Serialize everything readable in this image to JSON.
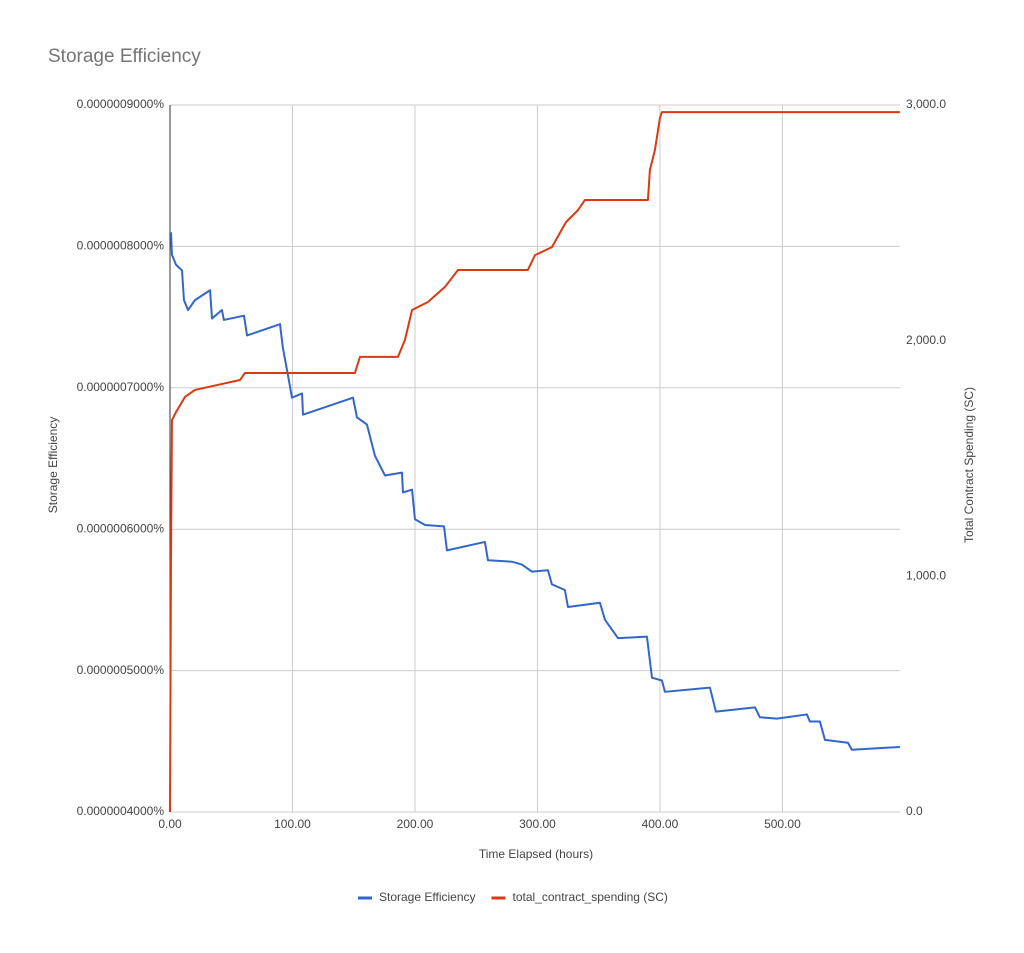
{
  "chart_data": {
    "type": "line",
    "title": "Storage Efficiency",
    "x_label": "Time Elapsed (hours)",
    "y_label": "Storage Efficiency",
    "y2_label": "Total Contract Spending (SC)",
    "xlim": [
      0,
      596
    ],
    "xticks": [
      {
        "value": 0,
        "label": "0.00"
      },
      {
        "value": 100,
        "label": "100.00"
      },
      {
        "value": 200,
        "label": "200.00"
      },
      {
        "value": 300,
        "label": "300.00"
      },
      {
        "value": 400,
        "label": "400.00"
      },
      {
        "value": 500,
        "label": "500.00"
      }
    ],
    "ylim": [
      4e-07,
      9e-07
    ],
    "yticks": [
      {
        "value": 4e-07,
        "label": "0.0000004000%"
      },
      {
        "value": 5e-07,
        "label": "0.0000005000%"
      },
      {
        "value": 6e-07,
        "label": "0.0000006000%"
      },
      {
        "value": 7e-07,
        "label": "0.0000007000%"
      },
      {
        "value": 8e-07,
        "label": "0.0000008000%"
      },
      {
        "value": 9e-07,
        "label": "0.0000009000%"
      }
    ],
    "y2lim": [
      0,
      3000
    ],
    "y2ticks": [
      {
        "value": 0,
        "label": "0.0"
      },
      {
        "value": 1000,
        "label": "1,000.0"
      },
      {
        "value": 2000,
        "label": "2,000.0"
      },
      {
        "value": 3000,
        "label": "3,000.0"
      }
    ],
    "grid": true,
    "legend": "bottom",
    "series": [
      {
        "name": "Storage Efficiency",
        "color": "#3366cc",
        "axis": "y",
        "x": [
          0.8,
          1.6,
          4.9,
          9.8,
          11.4,
          14.7,
          20.4,
          32.7,
          34.3,
          42.4,
          44,
          60.4,
          62.9,
          89.8,
          92.2,
          96.3,
          99.6,
          107.8,
          108.6,
          149.4,
          152.7,
          160.8,
          167.3,
          175.5,
          189.4,
          190.2,
          197.6,
          200,
          208.2,
          223.7,
          226.1,
          257.1,
          259.6,
          279.2,
          287.3,
          295.5,
          308.6,
          311.8,
          322.4,
          324.9,
          351,
          355.1,
          365.7,
          389.4,
          393.5,
          401.6,
          404.1,
          440.8,
          445.7,
          477.6,
          481.6,
          495.5,
          520,
          522.4,
          530.6,
          534.7,
          553.5,
          556.7,
          595.9
        ],
        "values": [
          8.1e-07,
          7.94e-07,
          7.87e-07,
          7.83e-07,
          7.62e-07,
          7.55e-07,
          7.62e-07,
          7.69e-07,
          7.49e-07,
          7.55e-07,
          7.48e-07,
          7.51e-07,
          7.37e-07,
          7.45e-07,
          7.28e-07,
          7.09e-07,
          6.93e-07,
          6.96e-07,
          6.81e-07,
          6.93e-07,
          6.79e-07,
          6.74e-07,
          6.52e-07,
          6.38e-07,
          6.4e-07,
          6.26e-07,
          6.28e-07,
          6.07e-07,
          6.03e-07,
          6.02e-07,
          5.85e-07,
          5.91e-07,
          5.78e-07,
          5.77e-07,
          5.75e-07,
          5.7e-07,
          5.71e-07,
          5.61e-07,
          5.57e-07,
          5.45e-07,
          5.48e-07,
          5.36e-07,
          5.23e-07,
          5.24e-07,
          4.95e-07,
          4.93e-07,
          4.85e-07,
          4.88e-07,
          4.71e-07,
          4.74e-07,
          4.67e-07,
          4.66e-07,
          4.69e-07,
          4.64e-07,
          4.64e-07,
          4.51e-07,
          4.49e-07,
          4.44e-07,
          4.46e-07
        ]
      },
      {
        "name": "total_contract_spending (SC)",
        "color": "#dc3912",
        "axis": "y2",
        "x": [
          0,
          0.8,
          1.6,
          4.9,
          12.2,
          20.4,
          57.1,
          61.2,
          151,
          155.1,
          186.1,
          191.8,
          197.6,
          210.6,
          224.5,
          235.1,
          292.2,
          298,
          311.8,
          323.3,
          333.1,
          338.8,
          390.2,
          391.8,
          395.9,
          400,
          401.6,
          595.9
        ],
        "values": [
          0,
          1069,
          1663,
          1697,
          1761,
          1791,
          1833,
          1863,
          1863,
          1931,
          1931,
          2003,
          2130,
          2164,
          2228,
          2300,
          2300,
          2363,
          2397,
          2503,
          2554,
          2597,
          2597,
          2724,
          2809,
          2945,
          2970,
          2970
        ]
      }
    ]
  }
}
